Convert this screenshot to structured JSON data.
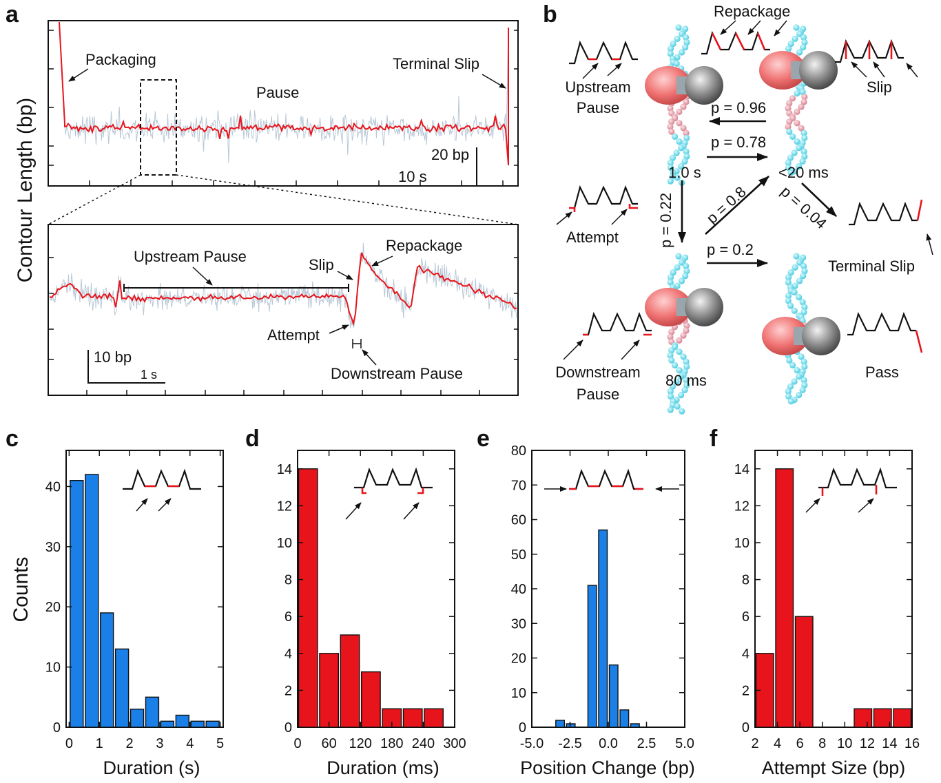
{
  "panel_letters": {
    "a": "a",
    "b": "b",
    "c": "c",
    "d": "d",
    "e": "e",
    "f": "f"
  },
  "colors": {
    "blue": "#1a7fe6",
    "red": "#e8141c",
    "raw_trace": "#b9c8d6",
    "cyan_dna": "#5ed8e8",
    "pink_dna": "#e8a0ac",
    "motor_pink": "#f07474",
    "motor_gray": "#8a8a8a"
  },
  "panel_a": {
    "ylabel": "Contour Length (bp)",
    "top": {
      "labels": {
        "packaging": "Packaging",
        "pause": "Pause",
        "terminal_slip": "Terminal Slip"
      },
      "scalebar": {
        "y_label": "20 bp",
        "x_label": "10 s"
      }
    },
    "bottom": {
      "labels": {
        "upstream_pause": "Upstream Pause",
        "slip": "Slip",
        "repackage": "Repackage",
        "attempt": "Attempt",
        "downstream_pause": "Downstream Pause"
      },
      "scalebar": {
        "y_label": "10 bp",
        "x_label": "1 s"
      }
    }
  },
  "panel_b": {
    "states": {
      "upstream_pause": {
        "line1": "Upstream",
        "line2": "Pause"
      },
      "repackage": "Repackage",
      "slip": "Slip",
      "attempt": "Attempt",
      "terminal_slip": "Terminal Slip",
      "downstream_pause": {
        "line1": "Downstream",
        "line2": "Pause"
      },
      "pass": "Pass"
    },
    "dwell_times": {
      "upstream": "1.0 s",
      "slip": "<20 ms",
      "downstream": "80 ms"
    },
    "probabilities": {
      "p_slip_to_pause": "p = 0.96",
      "p_pause_to_slip": "p = 0.78",
      "p_pause_to_attempt": "p = 0.22",
      "p_attempt_to_slip": "p = 0.8",
      "p_slip_to_terminal": "p = 0.04",
      "p_attempt_to_pass": "p = 0.2"
    }
  },
  "chart_data": [
    {
      "panel": "c",
      "type": "bar",
      "color": "#1a7fe6",
      "xlabel": "Duration (s)",
      "ylabel": "Counts",
      "xlim": [
        -0.1,
        5.1
      ],
      "ylim": [
        0,
        46
      ],
      "xticks": [
        0,
        1,
        2,
        3,
        4,
        5
      ],
      "yticks": [
        0,
        10,
        20,
        30,
        40
      ],
      "bin_width": 0.5,
      "x": [
        0,
        0.5,
        1.0,
        1.5,
        2.0,
        2.5,
        3.0,
        3.5,
        4.0,
        4.5
      ],
      "values": [
        41,
        42,
        19,
        13,
        3,
        5,
        1,
        2,
        1,
        1
      ]
    },
    {
      "panel": "d",
      "type": "bar",
      "color": "#e8141c",
      "xlabel": "Duration (ms)",
      "ylabel": "",
      "xlim": [
        0,
        300
      ],
      "ylim": [
        0,
        15
      ],
      "xticks": [
        0,
        60,
        120,
        180,
        240,
        300
      ],
      "yticks": [
        0,
        2,
        4,
        6,
        8,
        10,
        12,
        14
      ],
      "bin_width": 40,
      "x": [
        0,
        40,
        80,
        120,
        160,
        200,
        240
      ],
      "values": [
        14,
        4,
        5,
        3,
        1,
        1,
        1
      ]
    },
    {
      "panel": "e",
      "type": "bar",
      "color": "#1a7fe6",
      "xlabel": "Position Change (bp)",
      "ylabel": "",
      "xlim": [
        -5.0,
        5.0
      ],
      "ylim": [
        0,
        80
      ],
      "xticks": [
        -5.0,
        -2.5,
        0.0,
        2.5,
        5.0
      ],
      "xtick_labels": [
        "-5.0",
        "-2.5",
        "0.0",
        "2.5",
        "5.0"
      ],
      "yticks": [
        0,
        10,
        20,
        30,
        40,
        50,
        60,
        70,
        80
      ],
      "bin_width": 0.7,
      "x": [
        -3.5,
        -2.8,
        -1.4,
        -0.7,
        0.0,
        0.7,
        1.4,
        2.1
      ],
      "values": [
        2,
        1,
        41,
        57,
        18,
        5,
        1,
        0
      ]
    },
    {
      "panel": "f",
      "type": "bar",
      "color": "#e8141c",
      "xlabel": "Attempt Size (bp)",
      "ylabel": "",
      "xlim": [
        2,
        16
      ],
      "ylim": [
        0,
        15
      ],
      "xticks": [
        2,
        4,
        6,
        8,
        10,
        12,
        14,
        16
      ],
      "yticks": [
        0,
        2,
        4,
        6,
        8,
        10,
        12,
        14
      ],
      "bin_width": 1.75,
      "x": [
        2.0,
        3.75,
        5.5,
        7.25,
        9.0,
        10.75,
        12.5,
        14.25
      ],
      "values": [
        4,
        14,
        6,
        0,
        0,
        1,
        1,
        1
      ]
    }
  ]
}
